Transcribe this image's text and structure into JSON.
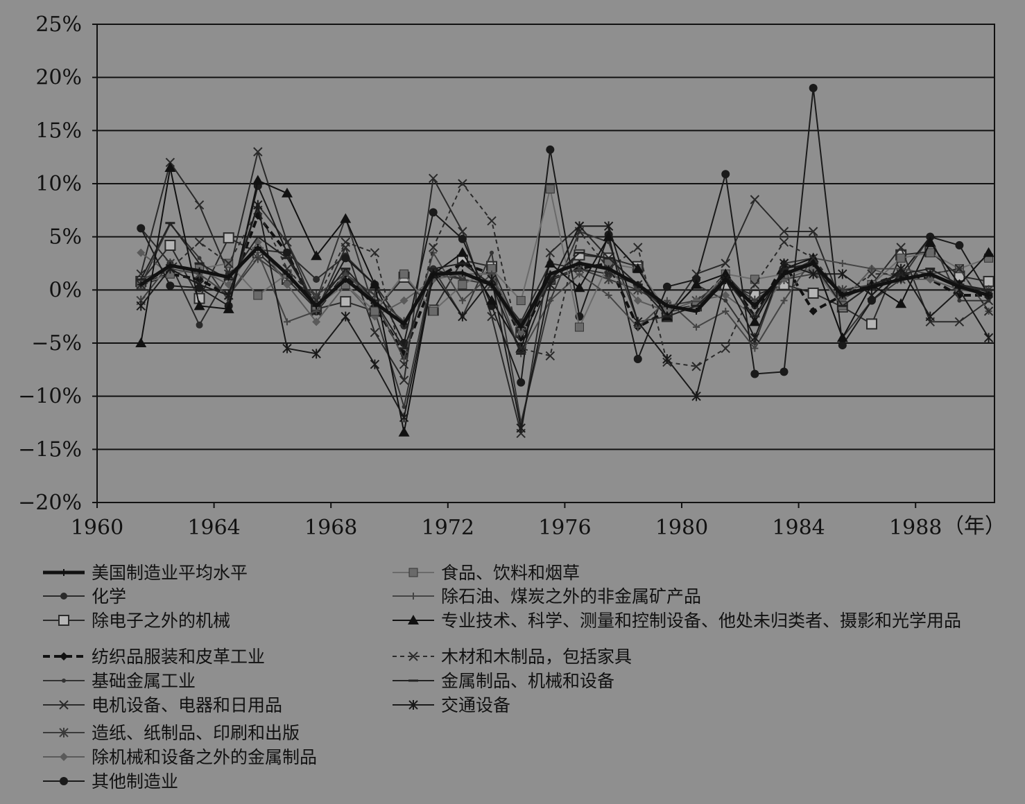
{
  "chart_data": {
    "type": "line",
    "x_unit_label": "（年）",
    "xticks": [
      1960,
      1964,
      1968,
      1972,
      1976,
      1980,
      1984,
      1988
    ],
    "xlim": [
      1960,
      1990.7
    ],
    "ylim": [
      -20,
      25
    ],
    "yticks": [
      "25%",
      "20%",
      "15%",
      "10%",
      "5%",
      "0%",
      "−5%",
      "−10%",
      "−15%",
      "−20%"
    ],
    "ytick_values": [
      25,
      20,
      15,
      10,
      5,
      0,
      -5,
      -10,
      -15,
      -20
    ],
    "grid": "horizontal",
    "legend_position": "bottom",
    "x": [
      1961.5,
      1962.5,
      1963.5,
      1964.5,
      1965.5,
      1966.5,
      1967.5,
      1968.5,
      1969.5,
      1970.5,
      1971.5,
      1972.5,
      1973.5,
      1974.5,
      1975.5,
      1976.5,
      1977.5,
      1978.5,
      1979.5,
      1980.5,
      1981.5,
      1982.5,
      1983.5,
      1984.5,
      1985.5,
      1986.5,
      1987.5,
      1988.5,
      1989.5,
      1990.5
    ],
    "series": [
      {
        "name": "美国制造业平均水平",
        "color": "#111111",
        "width": 5,
        "dash": "",
        "marker": "plus",
        "values": [
          0.5,
          2.3,
          1.8,
          1.2,
          4.0,
          1.5,
          -1.5,
          1.0,
          -1.2,
          -3.2,
          1.5,
          1.6,
          0.5,
          -3.5,
          1.5,
          2.5,
          2.0,
          0.5,
          -1.5,
          -2.0,
          1.0,
          -1.5,
          1.5,
          2.5,
          -0.5,
          0.3,
          1.0,
          1.5,
          0.3,
          -0.5
        ]
      },
      {
        "name": "化学",
        "color": "#2a2a2a",
        "width": 2,
        "dash": "",
        "marker": "dot",
        "values": [
          5.8,
          2.5,
          -3.3,
          1.5,
          3.8,
          3.5,
          1.0,
          3.2,
          0.5,
          -3.4,
          2.0,
          1.0,
          0.5,
          -3.0,
          2.5,
          2.0,
          1.5,
          0.5,
          -2.0,
          -1.5,
          1.5,
          -1.5,
          1.5,
          2.8,
          -0.8,
          0.5,
          1.0,
          1.5,
          0.5,
          -0.2
        ]
      },
      {
        "name": "除电子之外的机械",
        "color": "#2a2a2a",
        "width": 2,
        "dash": "",
        "marker": "square-open",
        "values": [
          0.8,
          4.2,
          -0.8,
          4.9,
          3.5,
          1.0,
          -1.8,
          -1.1,
          -2.0,
          1.2,
          -1.9,
          2.8,
          2.2,
          -4.0,
          1.0,
          3.3,
          3.0,
          2.2,
          -2.5,
          -1.5,
          0.5,
          -0.5,
          0.5,
          -0.3,
          -1.6,
          -3.2,
          3.3,
          3.6,
          1.3,
          0.8
        ]
      },
      {
        "name": "纺织品服装和皮革工业",
        "color": "#111111",
        "width": 4,
        "dash": "10,6",
        "marker": "diamond",
        "values": [
          0.5,
          1.5,
          1.0,
          -0.5,
          7.0,
          3.5,
          -2.0,
          1.5,
          -1.5,
          -6.0,
          1.0,
          2.5,
          1.5,
          -4.5,
          1.0,
          2.0,
          2.5,
          -3.5,
          -2.0,
          -1.5,
          1.5,
          -2.5,
          2.5,
          -2.0,
          -0.5,
          0.5,
          1.5,
          1.0,
          -0.5,
          -0.5
        ]
      },
      {
        "name": "基础金属工业",
        "color": "#333333",
        "width": 2,
        "dash": "",
        "marker": "small-dot",
        "values": [
          0.5,
          6.2,
          3.0,
          -1.0,
          8.0,
          4.5,
          -1.0,
          6.8,
          -2.0,
          -11.0,
          2.0,
          -2.5,
          3.5,
          -12.5,
          -1.0,
          5.5,
          4.5,
          -3.0,
          -2.5,
          0.5,
          -1.0,
          -5.0,
          2.5,
          3.0,
          -4.5,
          -1.0,
          1.0,
          5.0,
          -1.0,
          -1.0
        ]
      },
      {
        "name": "电机设备、电器和日用品",
        "color": "#2a2a2a",
        "width": 2,
        "dash": "",
        "marker": "x",
        "values": [
          1.5,
          12.0,
          8.0,
          1.5,
          13.0,
          4.5,
          -2.0,
          4.0,
          -4.0,
          -8.5,
          10.5,
          5.5,
          -2.5,
          -13.5,
          3.5,
          6.0,
          3.0,
          0.5,
          -2.5,
          1.5,
          2.5,
          8.5,
          5.5,
          5.5,
          -1.5,
          0.5,
          4.0,
          -3.0,
          -3.0,
          -1.0
        ]
      },
      {
        "name": "造纸、纸制品、印刷和出版",
        "color": "#3a3a3a",
        "width": 2,
        "dash": "",
        "marker": "asterisk",
        "values": [
          -1.0,
          2.5,
          1.5,
          -0.5,
          3.0,
          1.0,
          -0.5,
          1.5,
          -0.5,
          -3.0,
          1.5,
          1.0,
          0.5,
          -4.0,
          1.0,
          2.0,
          1.0,
          0.0,
          -1.5,
          -1.0,
          1.0,
          -1.0,
          1.0,
          1.5,
          0.0,
          0.5,
          1.0,
          1.5,
          0.5,
          0.0
        ]
      },
      {
        "name": "除机械和设备之外的金属制品",
        "color": "#5a5a5a",
        "width": 2,
        "dash": "",
        "marker": "diamond",
        "values": [
          3.5,
          1.5,
          2.0,
          0.5,
          4.5,
          0.5,
          -3.0,
          0.5,
          -2.5,
          -1.0,
          1.0,
          1.5,
          1.5,
          -4.0,
          1.5,
          2.5,
          2.0,
          -1.0,
          -2.0,
          -1.0,
          -0.5,
          -2.5,
          1.0,
          2.0,
          -1.0,
          2.0,
          1.0,
          1.0,
          0.0,
          -0.3
        ]
      },
      {
        "name": "其他制造业",
        "color": "#1a1a1a",
        "width": 2,
        "dash": "",
        "marker": "dot-large",
        "values": [
          5.8,
          0.4,
          0.2,
          -1.5,
          9.8,
          3.5,
          -2.0,
          3.0,
          0.5,
          -5.0,
          7.3,
          4.8,
          -1.5,
          -8.7,
          13.2,
          -2.5,
          5.2,
          -6.5,
          0.3,
          1.0,
          10.9,
          -7.9,
          -7.7,
          19.0,
          -5.2,
          -1.0,
          1.5,
          5.0,
          4.2,
          -0.5
        ]
      },
      {
        "name": "食品、饮料和烟草",
        "color": "#6a6a6a",
        "width": 2,
        "dash": "",
        "marker": "square",
        "values": [
          0.5,
          1.5,
          2.0,
          2.5,
          -0.5,
          1.5,
          -1.5,
          0.5,
          -2.0,
          1.5,
          -2.0,
          0.5,
          2.0,
          -1.0,
          9.5,
          -3.5,
          2.5,
          2.0,
          -2.0,
          -1.5,
          1.5,
          1.0,
          1.5,
          2.0,
          -1.5,
          0.5,
          3.0,
          3.5,
          2.0,
          3.0
        ]
      },
      {
        "name": "除石油、煤炭之外的非金属矿产品",
        "color": "#444444",
        "width": 2,
        "dash": "",
        "marker": "plus",
        "values": [
          1.0,
          2.0,
          1.5,
          -0.5,
          3.5,
          -3.0,
          -2.0,
          1.5,
          -1.0,
          -6.5,
          3.5,
          -1.0,
          1.5,
          -6.0,
          -1.0,
          1.5,
          -0.5,
          -3.5,
          -1.0,
          -3.5,
          -2.0,
          -5.5,
          -1.0,
          3.0,
          2.5,
          2.0,
          2.0,
          1.5,
          2.0,
          -2.0
        ]
      },
      {
        "name": "专业技术、科学、测量和控制设备、他处未归类者、摄影和光学用品",
        "color": "#111111",
        "width": 2,
        "dash": "",
        "marker": "triangle",
        "values": [
          -5.0,
          11.5,
          -1.5,
          -1.8,
          10.3,
          9.1,
          3.2,
          6.7,
          0.5,
          -13.4,
          1.5,
          3.5,
          -1.0,
          -5.5,
          2.5,
          0.2,
          5.0,
          2.0,
          -2.5,
          0.5,
          1.5,
          -3.0,
          2.0,
          3.0,
          -4.5,
          0.5,
          -1.3,
          4.5,
          0.5,
          3.5
        ]
      },
      {
        "name": "木材和木制品，包括家具",
        "color": "#2a2a2a",
        "width": 2,
        "dash": "6,5",
        "marker": "x",
        "values": [
          0.5,
          2.0,
          4.5,
          2.5,
          7.5,
          2.0,
          -1.0,
          4.5,
          3.5,
          -7.0,
          4.0,
          10.0,
          6.5,
          -5.5,
          -6.2,
          5.5,
          2.0,
          4.0,
          -6.8,
          -7.2,
          -5.5,
          0.5,
          4.5,
          3.0,
          -0.5,
          1.5,
          1.5,
          1.5,
          2.0,
          -2.0
        ]
      },
      {
        "name": "金属制品、机械和设备",
        "color": "#222222",
        "width": 2,
        "dash": "",
        "marker": "dash",
        "values": [
          1.0,
          6.3,
          2.5,
          1.0,
          5.0,
          3.0,
          -1.5,
          2.0,
          -1.0,
          -5.5,
          2.0,
          2.5,
          0.5,
          -6.0,
          1.0,
          3.5,
          3.0,
          0.5,
          -2.5,
          -1.5,
          1.0,
          -2.5,
          2.0,
          2.5,
          -1.5,
          0.5,
          1.5,
          2.0,
          0.5,
          0.0
        ]
      },
      {
        "name": "交通设备",
        "color": "#1a1a1a",
        "width": 2,
        "dash": "",
        "marker": "asterisk",
        "values": [
          -1.5,
          2.0,
          0.5,
          -0.5,
          8.0,
          -5.5,
          -6.0,
          -2.5,
          -7.0,
          -12.0,
          1.5,
          -2.5,
          1.0,
          -13.0,
          0.5,
          6.0,
          6.0,
          -3.0,
          -6.5,
          -10.0,
          1.0,
          -4.5,
          2.5,
          1.5,
          1.5,
          -0.5,
          2.0,
          -2.5,
          0.0,
          -4.5
        ]
      }
    ]
  }
}
